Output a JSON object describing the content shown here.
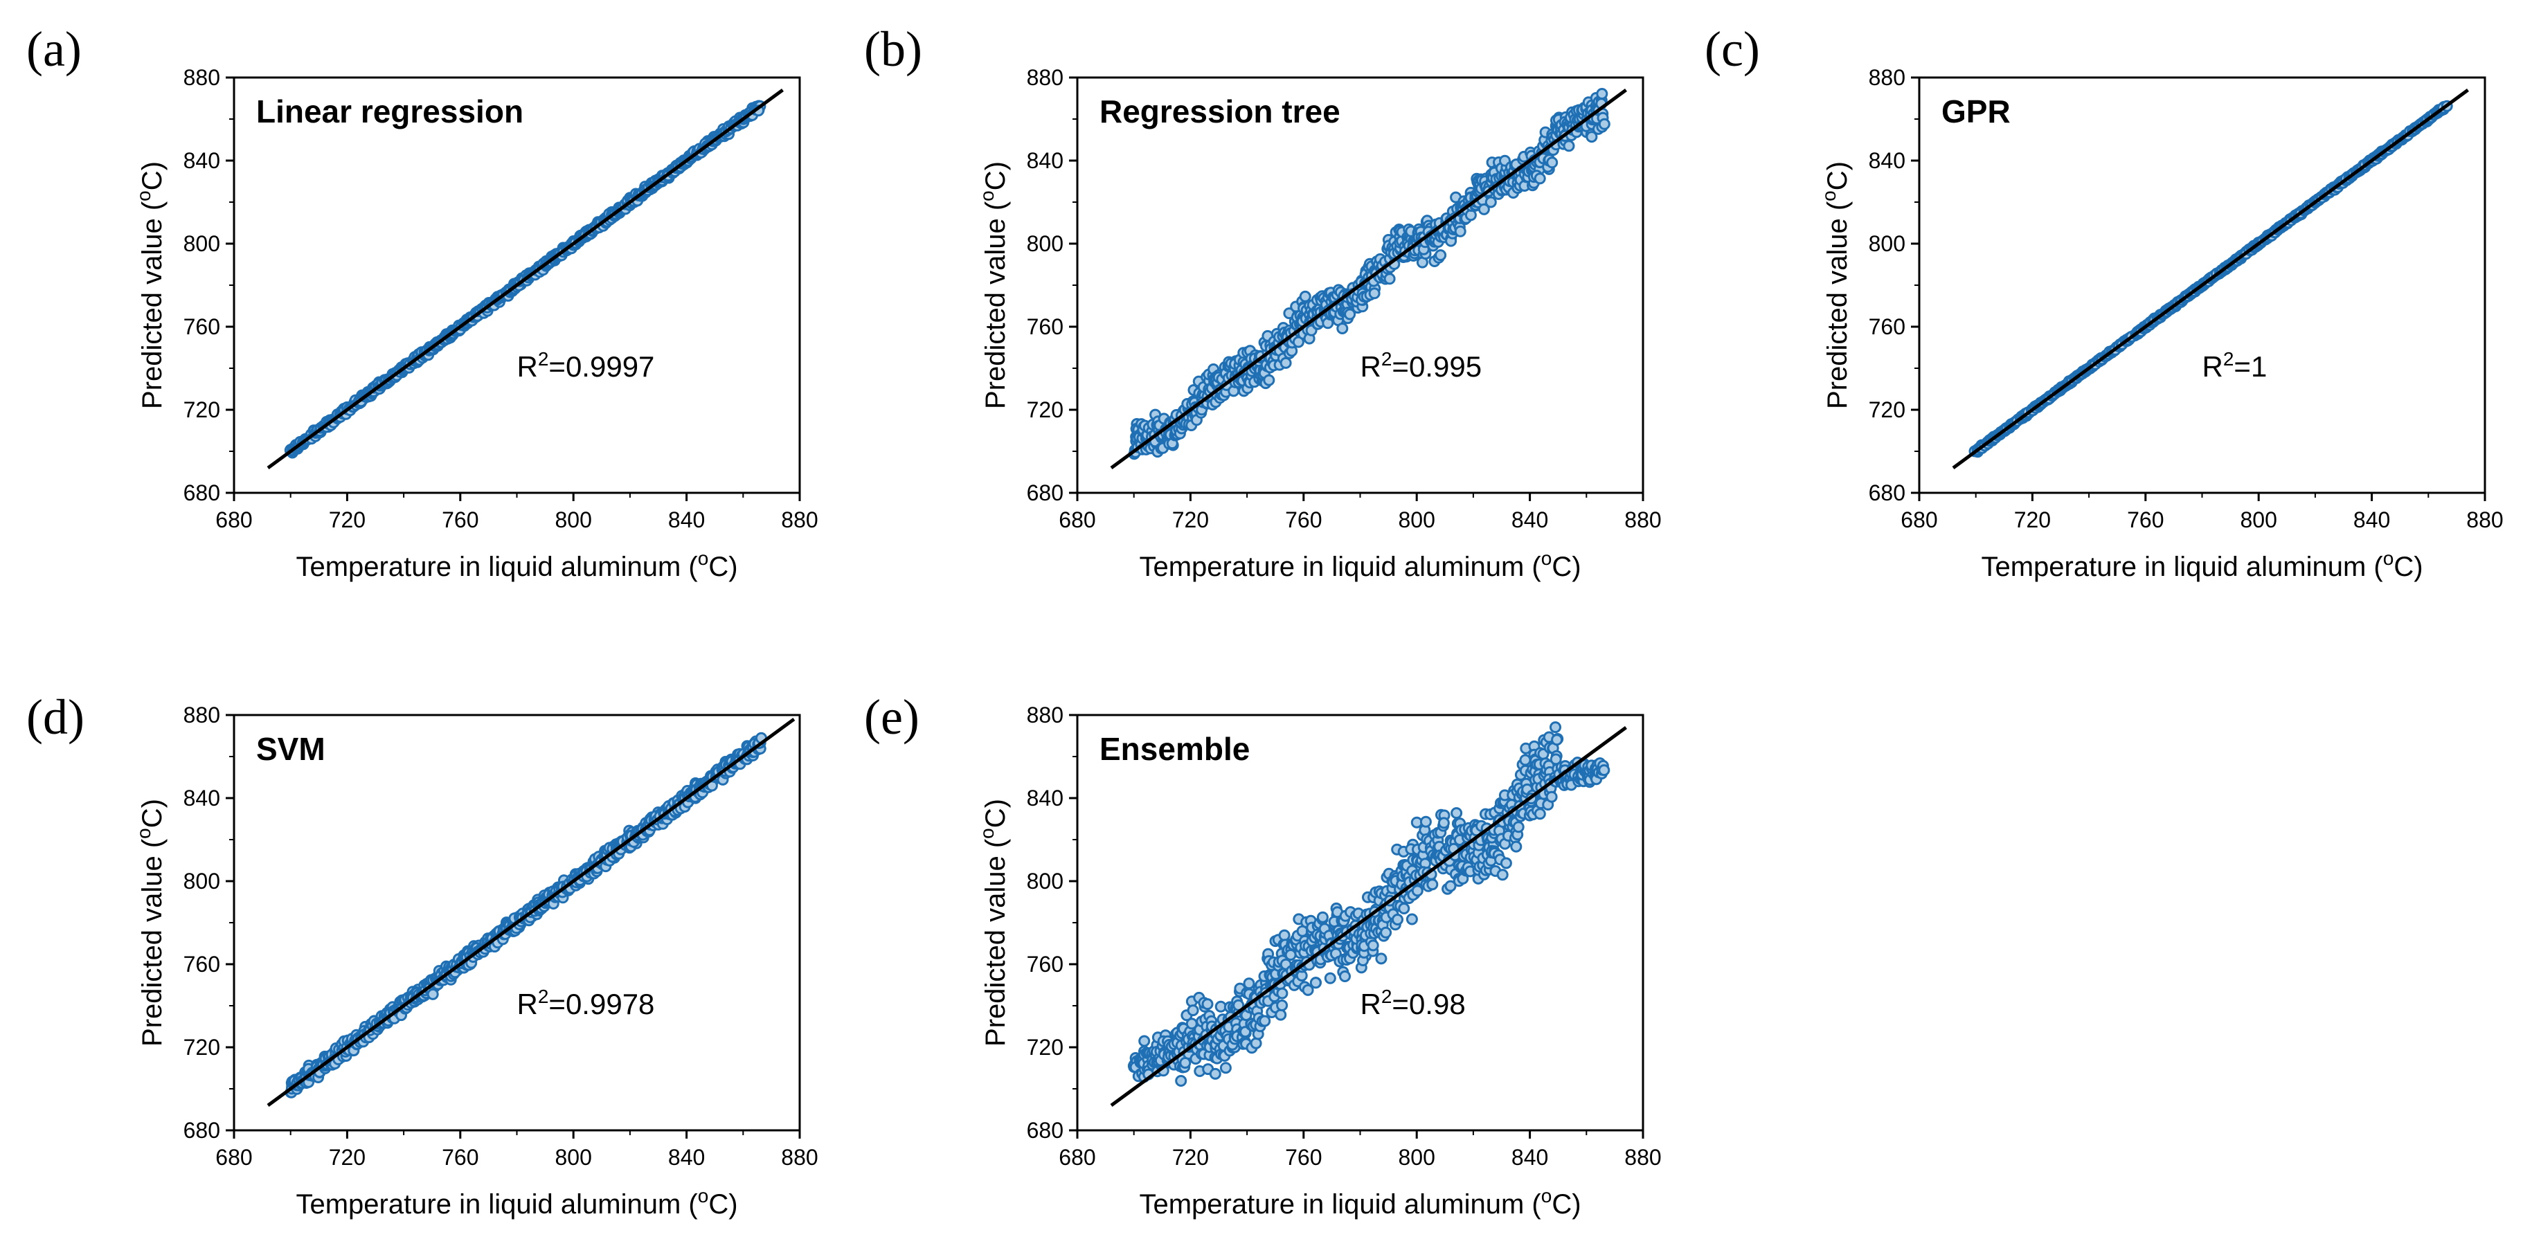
{
  "figure_colors": {
    "marker": "#1f6fb4",
    "marker_fill": "#a9cbe6",
    "line": "#000000",
    "axis": "#000000"
  },
  "chart_data": [
    {
      "panel": "(a)",
      "type": "scatter",
      "title": "Linear regression",
      "r2_prefix": "R",
      "r2_sup": "2",
      "r2_value": "=0.9997",
      "xlabel": "Temperature in liquid aluminum (",
      "xlabel_sup": "o",
      "xlabel_unit": "C)",
      "ylabel": "Predicted value (",
      "ylabel_sup": "o",
      "ylabel_unit": "C)",
      "xlim": [
        680,
        880
      ],
      "ylim": [
        680,
        880
      ],
      "xticks": [
        680,
        720,
        760,
        800,
        840,
        880
      ],
      "yticks": [
        680,
        720,
        760,
        800,
        840,
        880
      ],
      "data_range": [
        700,
        866
      ],
      "spread": 1.2,
      "fit_line": {
        "x": [
          692,
          874
        ],
        "y": [
          692,
          874
        ]
      }
    },
    {
      "panel": "(b)",
      "type": "scatter",
      "title": "Regression tree",
      "r2_prefix": "R",
      "r2_sup": "2",
      "r2_value": "=0.995",
      "xlabel": "Temperature in liquid aluminum (",
      "xlabel_sup": "o",
      "xlabel_unit": "C)",
      "ylabel": "Predicted value (",
      "ylabel_sup": "o",
      "ylabel_unit": "C)",
      "xlim": [
        680,
        880
      ],
      "ylim": [
        680,
        880
      ],
      "xticks": [
        680,
        720,
        760,
        800,
        840,
        880
      ],
      "yticks": [
        680,
        720,
        760,
        800,
        840,
        880
      ],
      "data_range": [
        700,
        866
      ],
      "spread": 6,
      "fit_line": {
        "x": [
          692,
          874
        ],
        "y": [
          692,
          874
        ]
      }
    },
    {
      "panel": "(c)",
      "type": "scatter",
      "title": "GPR",
      "r2_prefix": "R",
      "r2_sup": "2",
      "r2_value": "=1",
      "xlabel": "Temperature in liquid aluminum (",
      "xlabel_sup": "o",
      "xlabel_unit": "C)",
      "ylabel": "Predicted value (",
      "ylabel_sup": "o",
      "ylabel_unit": "C)",
      "xlim": [
        680,
        880
      ],
      "ylim": [
        680,
        880
      ],
      "xticks": [
        680,
        720,
        760,
        800,
        840,
        880
      ],
      "yticks": [
        680,
        720,
        760,
        800,
        840,
        880
      ],
      "data_range": [
        700,
        866
      ],
      "spread": 0.5,
      "fit_line": {
        "x": [
          692,
          874
        ],
        "y": [
          692,
          874
        ]
      }
    },
    {
      "panel": "(d)",
      "type": "scatter",
      "title": "SVM",
      "r2_prefix": "R",
      "r2_sup": "2",
      "r2_value": "=0.9978",
      "xlabel": "Temperature in liquid aluminum (",
      "xlabel_sup": "o",
      "xlabel_unit": "C)",
      "ylabel": "Predicted value (",
      "ylabel_sup": "o",
      "ylabel_unit": "C)",
      "xlim": [
        680,
        880
      ],
      "ylim": [
        680,
        880
      ],
      "xticks": [
        680,
        720,
        760,
        800,
        840,
        880
      ],
      "yticks": [
        680,
        720,
        760,
        800,
        840,
        880
      ],
      "data_range": [
        700,
        866
      ],
      "spread": 2.5,
      "fit_line": {
        "x": [
          692,
          878
        ],
        "y": [
          692,
          878
        ]
      }
    },
    {
      "panel": "(e)",
      "type": "scatter",
      "title": "Ensemble",
      "r2_prefix": "R",
      "r2_sup": "2",
      "r2_value": "=0.98",
      "xlabel": "Temperature in liquid aluminum (",
      "xlabel_sup": "o",
      "xlabel_unit": "C)",
      "ylabel": "Predicted value (",
      "ylabel_sup": "o",
      "ylabel_unit": "C)",
      "xlim": [
        680,
        880
      ],
      "ylim": [
        680,
        880
      ],
      "xticks": [
        680,
        720,
        760,
        800,
        840,
        880
      ],
      "yticks": [
        680,
        720,
        760,
        800,
        840,
        880
      ],
      "data_range": [
        700,
        866
      ],
      "spread": 12,
      "fit_line": {
        "x": [
          692,
          874
        ],
        "y": [
          692,
          874
        ]
      }
    }
  ]
}
